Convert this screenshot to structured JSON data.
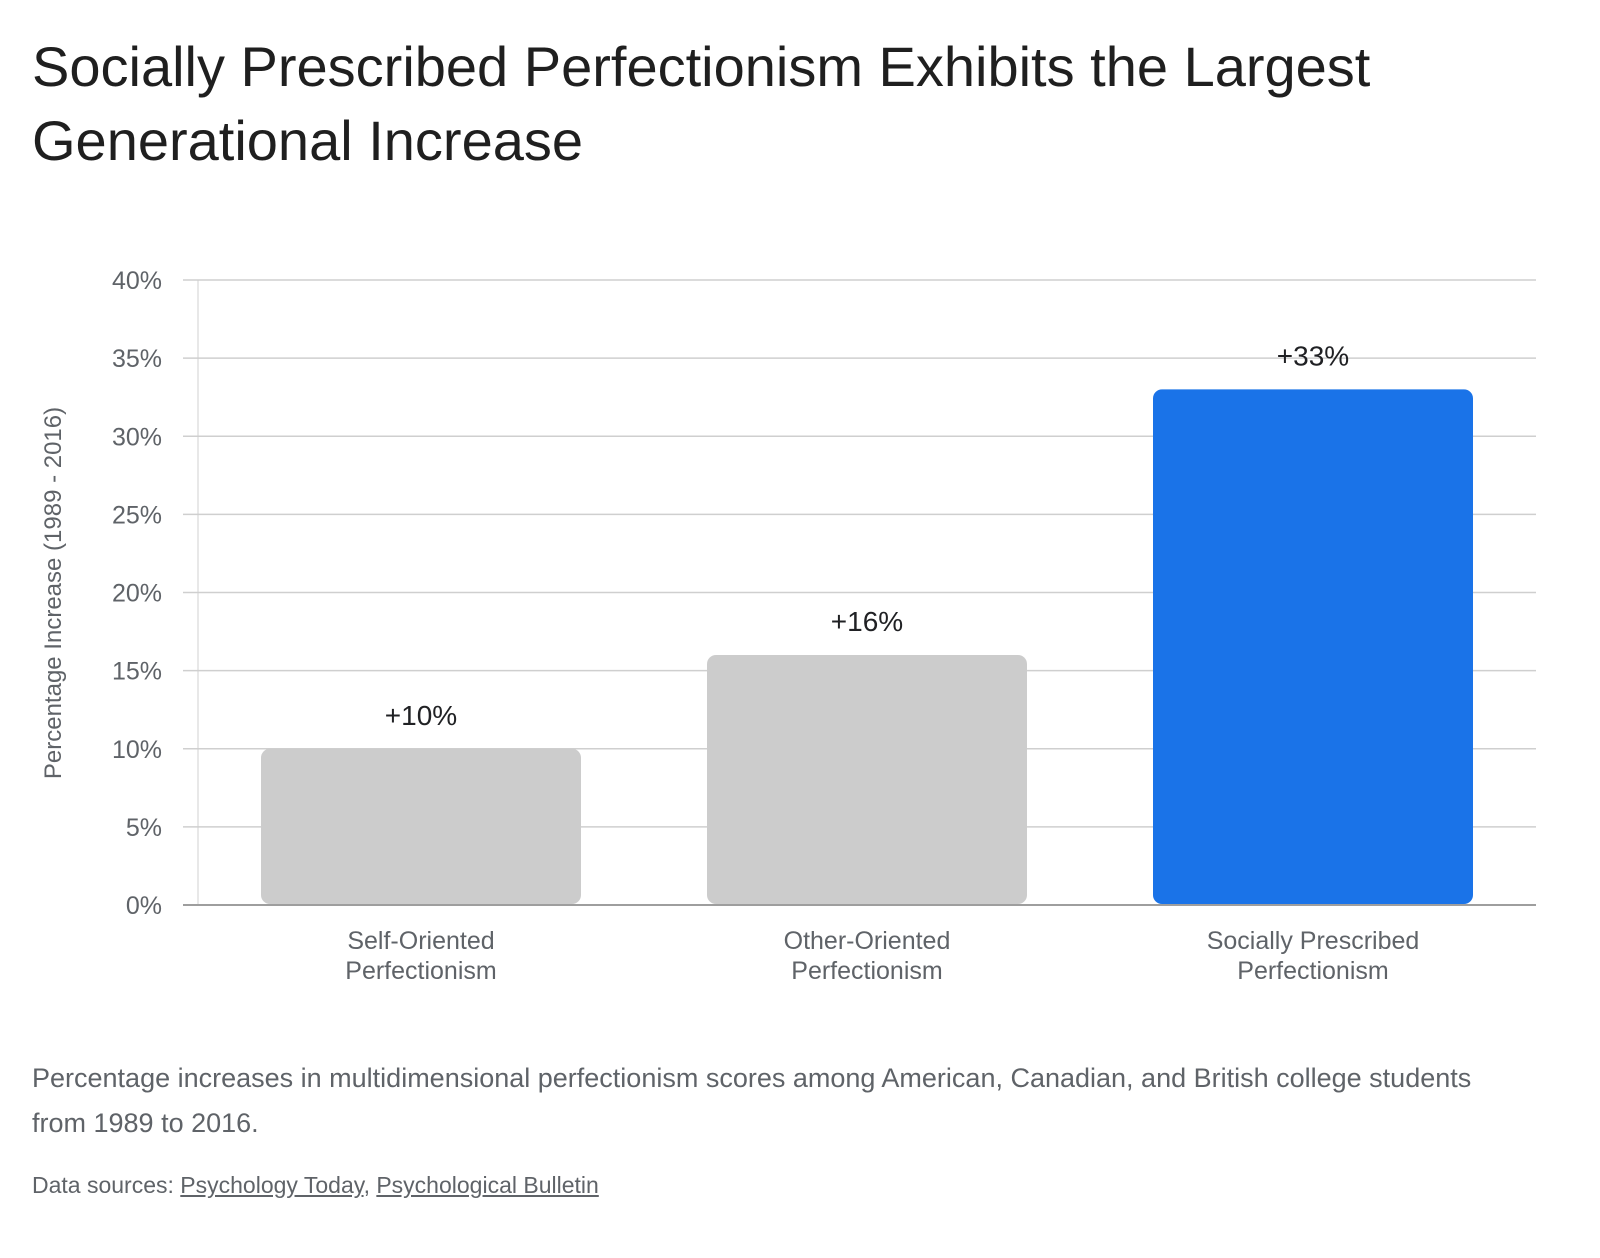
{
  "chart_data": {
    "type": "bar",
    "title": "Socially Prescribed Perfectionism Exhibits the Largest Generational Increase",
    "ylabel": "Percentage Increase (1989 - 2016)",
    "xlabel": "",
    "ylim": [
      0,
      40
    ],
    "y_ticks": [
      "0%",
      "5%",
      "10%",
      "15%",
      "20%",
      "25%",
      "30%",
      "35%",
      "40%"
    ],
    "categories": [
      [
        "Self-Oriented",
        "Perfectionism"
      ],
      [
        "Other-Oriented",
        "Perfectionism"
      ],
      [
        "Socially Prescribed",
        "Perfectionism"
      ]
    ],
    "values": [
      10,
      16,
      33
    ],
    "data_labels": [
      "+10%",
      "+16%",
      "+33%"
    ],
    "colors": [
      "#cccccc",
      "#cccccc",
      "#1a73e8"
    ],
    "grid": true,
    "legend": "none"
  },
  "caption": "Percentage increases in multidimensional perfectionism scores among American, Canadian, and British college students from 1989 to 2016.",
  "sources": {
    "prefix": "Data sources: ",
    "separator": ", ",
    "links": [
      "Psychology Today",
      "Psychological Bulletin"
    ]
  }
}
